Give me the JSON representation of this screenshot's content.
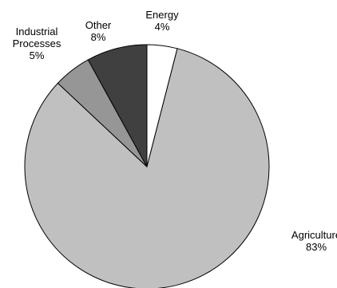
{
  "chart_data": {
    "type": "pie",
    "slices": [
      {
        "name": "Energy",
        "value": 4,
        "value_label": "4%",
        "color": "#ffffff"
      },
      {
        "name": "Agriculture",
        "value": 83,
        "value_label": "83%",
        "color": "#c0c0c0"
      },
      {
        "name": "Industrial Processes",
        "name_lines": [
          "Industrial",
          "Processes"
        ],
        "value": 5,
        "value_label": "5%",
        "color": "#969696"
      },
      {
        "name": "Other",
        "value": 8,
        "value_label": "8%",
        "color": "#404040"
      }
    ],
    "start_angle_deg": 0,
    "direction": "clockwise",
    "legend": "none",
    "title": ""
  }
}
